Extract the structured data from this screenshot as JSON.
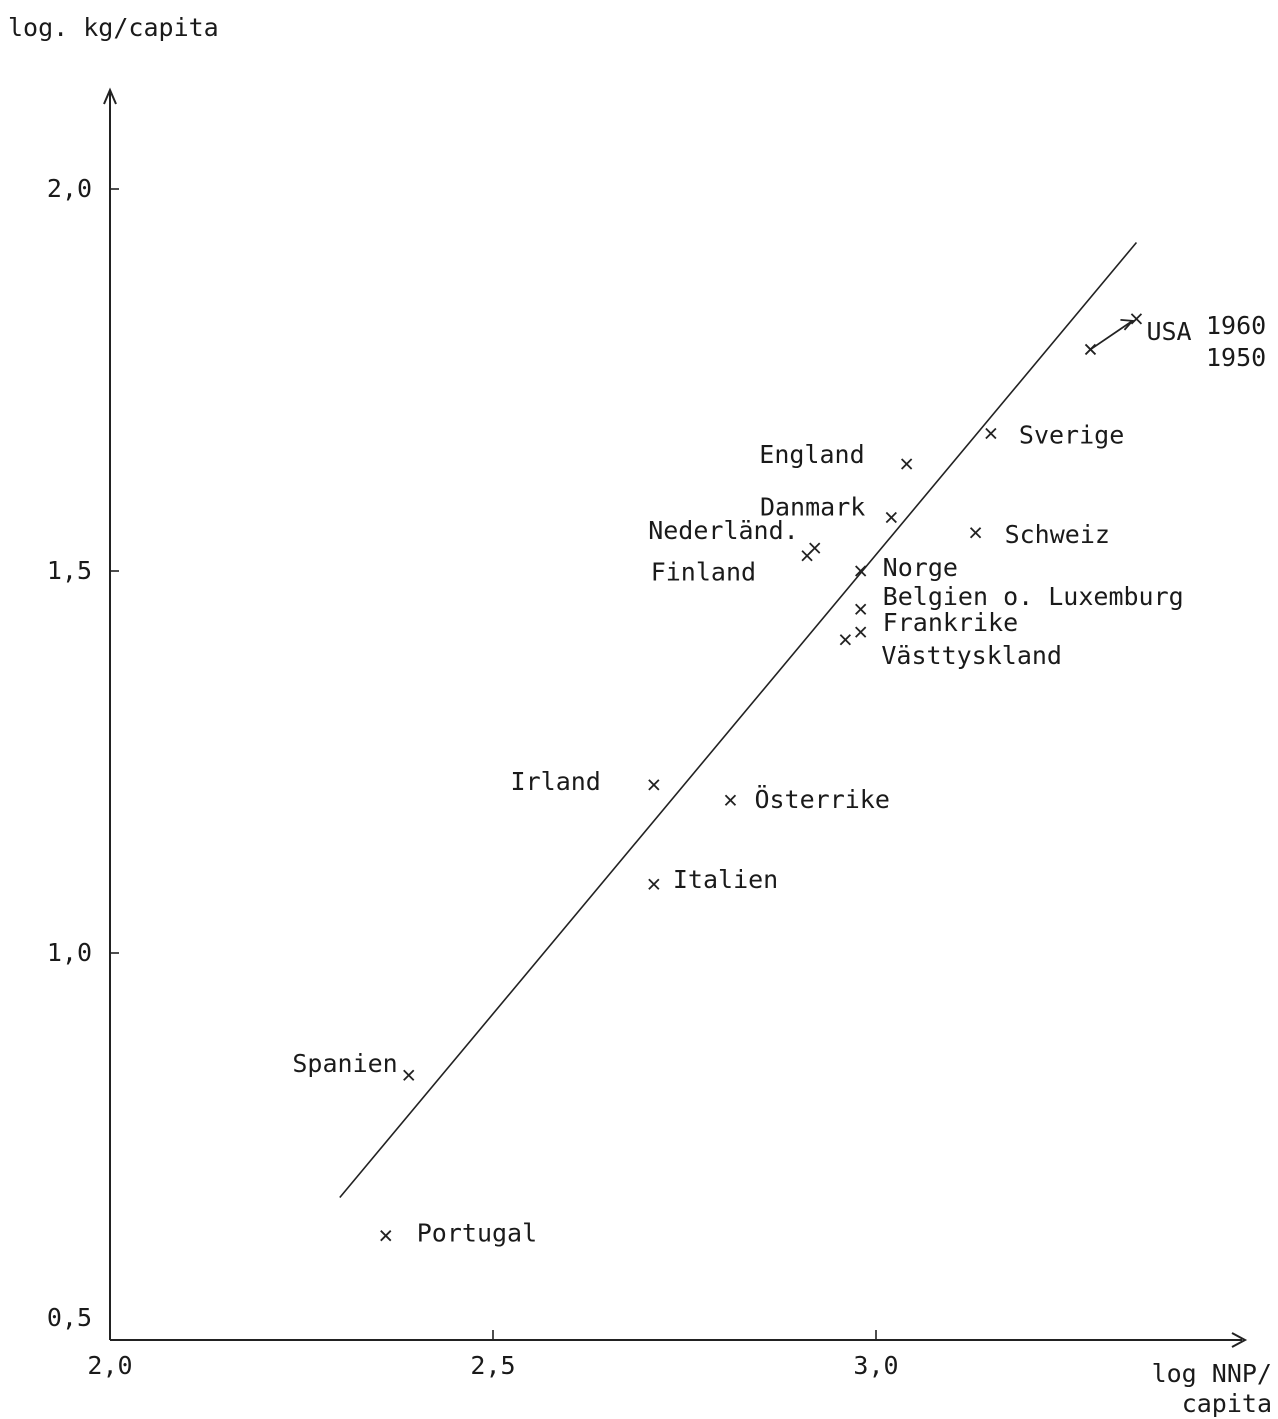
{
  "chart_data": {
    "type": "scatter",
    "xlabel": "log NNP/\ncapita",
    "ylabel": "log. kg/capita",
    "xlim": [
      2.0,
      3.5
    ],
    "ylim": [
      0.5,
      2.1
    ],
    "x_ticks": [
      {
        "value": 2.0,
        "label": "2,0"
      },
      {
        "value": 2.5,
        "label": "2,5"
      },
      {
        "value": 3.0,
        "label": "3,0"
      }
    ],
    "y_ticks": [
      {
        "value": 0.5,
        "label": "0,5"
      },
      {
        "value": 1.0,
        "label": "1,0"
      },
      {
        "value": 1.5,
        "label": "1,5"
      },
      {
        "value": 2.0,
        "label": "2,0"
      }
    ],
    "points": [
      {
        "label": "USA",
        "x": 3.34,
        "y": 1.83
      },
      {
        "label": "USA",
        "x": 3.28,
        "y": 1.79
      },
      {
        "label": "Sverige",
        "x": 3.15,
        "y": 1.68
      },
      {
        "label": "England",
        "x": 3.04,
        "y": 1.64
      },
      {
        "label": "Danmark",
        "x": 3.02,
        "y": 1.57
      },
      {
        "label": "Schweiz",
        "x": 3.13,
        "y": 1.55
      },
      {
        "label": "Nederländ.",
        "x": 2.92,
        "y": 1.53
      },
      {
        "label": "Finland",
        "x": 2.91,
        "y": 1.52
      },
      {
        "label": "Norge",
        "x": 2.98,
        "y": 1.5
      },
      {
        "label": "Belgien o. Luxemburg",
        "x": 2.98,
        "y": 1.45
      },
      {
        "label": "Frankrike",
        "x": 2.98,
        "y": 1.42
      },
      {
        "label": "Västtyskland",
        "x": 2.96,
        "y": 1.41
      },
      {
        "label": "Irland",
        "x": 2.71,
        "y": 1.22
      },
      {
        "label": "Österrike",
        "x": 2.81,
        "y": 1.2
      },
      {
        "label": "Italien",
        "x": 2.71,
        "y": 1.09
      },
      {
        "label": "Spanien",
        "x": 2.39,
        "y": 0.84
      },
      {
        "label": "Portugal",
        "x": 2.36,
        "y": 0.63
      }
    ],
    "usa_years": [
      "1960",
      "1950"
    ],
    "trend_line": {
      "x": [
        2.3,
        3.34
      ],
      "y": [
        0.68,
        1.93
      ]
    },
    "grid": false,
    "legend": "none"
  }
}
